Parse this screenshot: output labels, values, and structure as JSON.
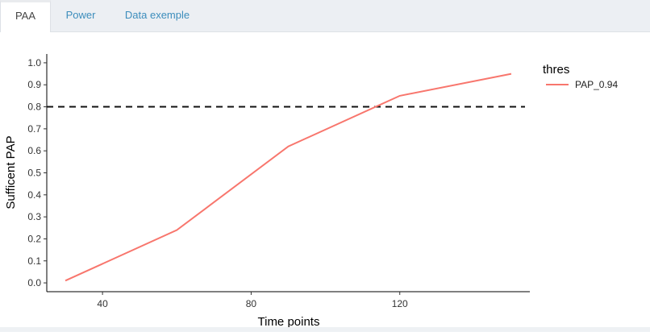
{
  "tabs": [
    {
      "label": "PAA",
      "active": true
    },
    {
      "label": "Power",
      "active": false
    },
    {
      "label": "Data exemple",
      "active": false
    }
  ],
  "colors": {
    "series": "#f8766d",
    "threshold": "#111111",
    "tab_link": "#3c8dbc"
  },
  "chart_data": {
    "type": "line",
    "xlabel": "Time points",
    "ylabel": "Sufficent PAP",
    "xlim": [
      25,
      155
    ],
    "ylim": [
      -0.04,
      1.04
    ],
    "x_ticks": [
      40,
      80,
      120
    ],
    "y_ticks": [
      0.0,
      0.1,
      0.2,
      0.3,
      0.4,
      0.5,
      0.6,
      0.7,
      0.8,
      0.9,
      1.0
    ],
    "y_tick_labels": [
      "0.0",
      "0.1",
      "0.2",
      "0.3",
      "0.4",
      "0.5",
      "0.6",
      "0.7",
      "0.8",
      "0.9",
      "1.0"
    ],
    "grid": false,
    "legend": {
      "title": "thres",
      "position": "right"
    },
    "series": [
      {
        "name": "PAP_0.94",
        "x": [
          30,
          60,
          90,
          120,
          150
        ],
        "y": [
          0.01,
          0.24,
          0.62,
          0.85,
          0.95
        ]
      }
    ],
    "threshold_line": {
      "y": 0.8,
      "style": "dashed"
    }
  }
}
